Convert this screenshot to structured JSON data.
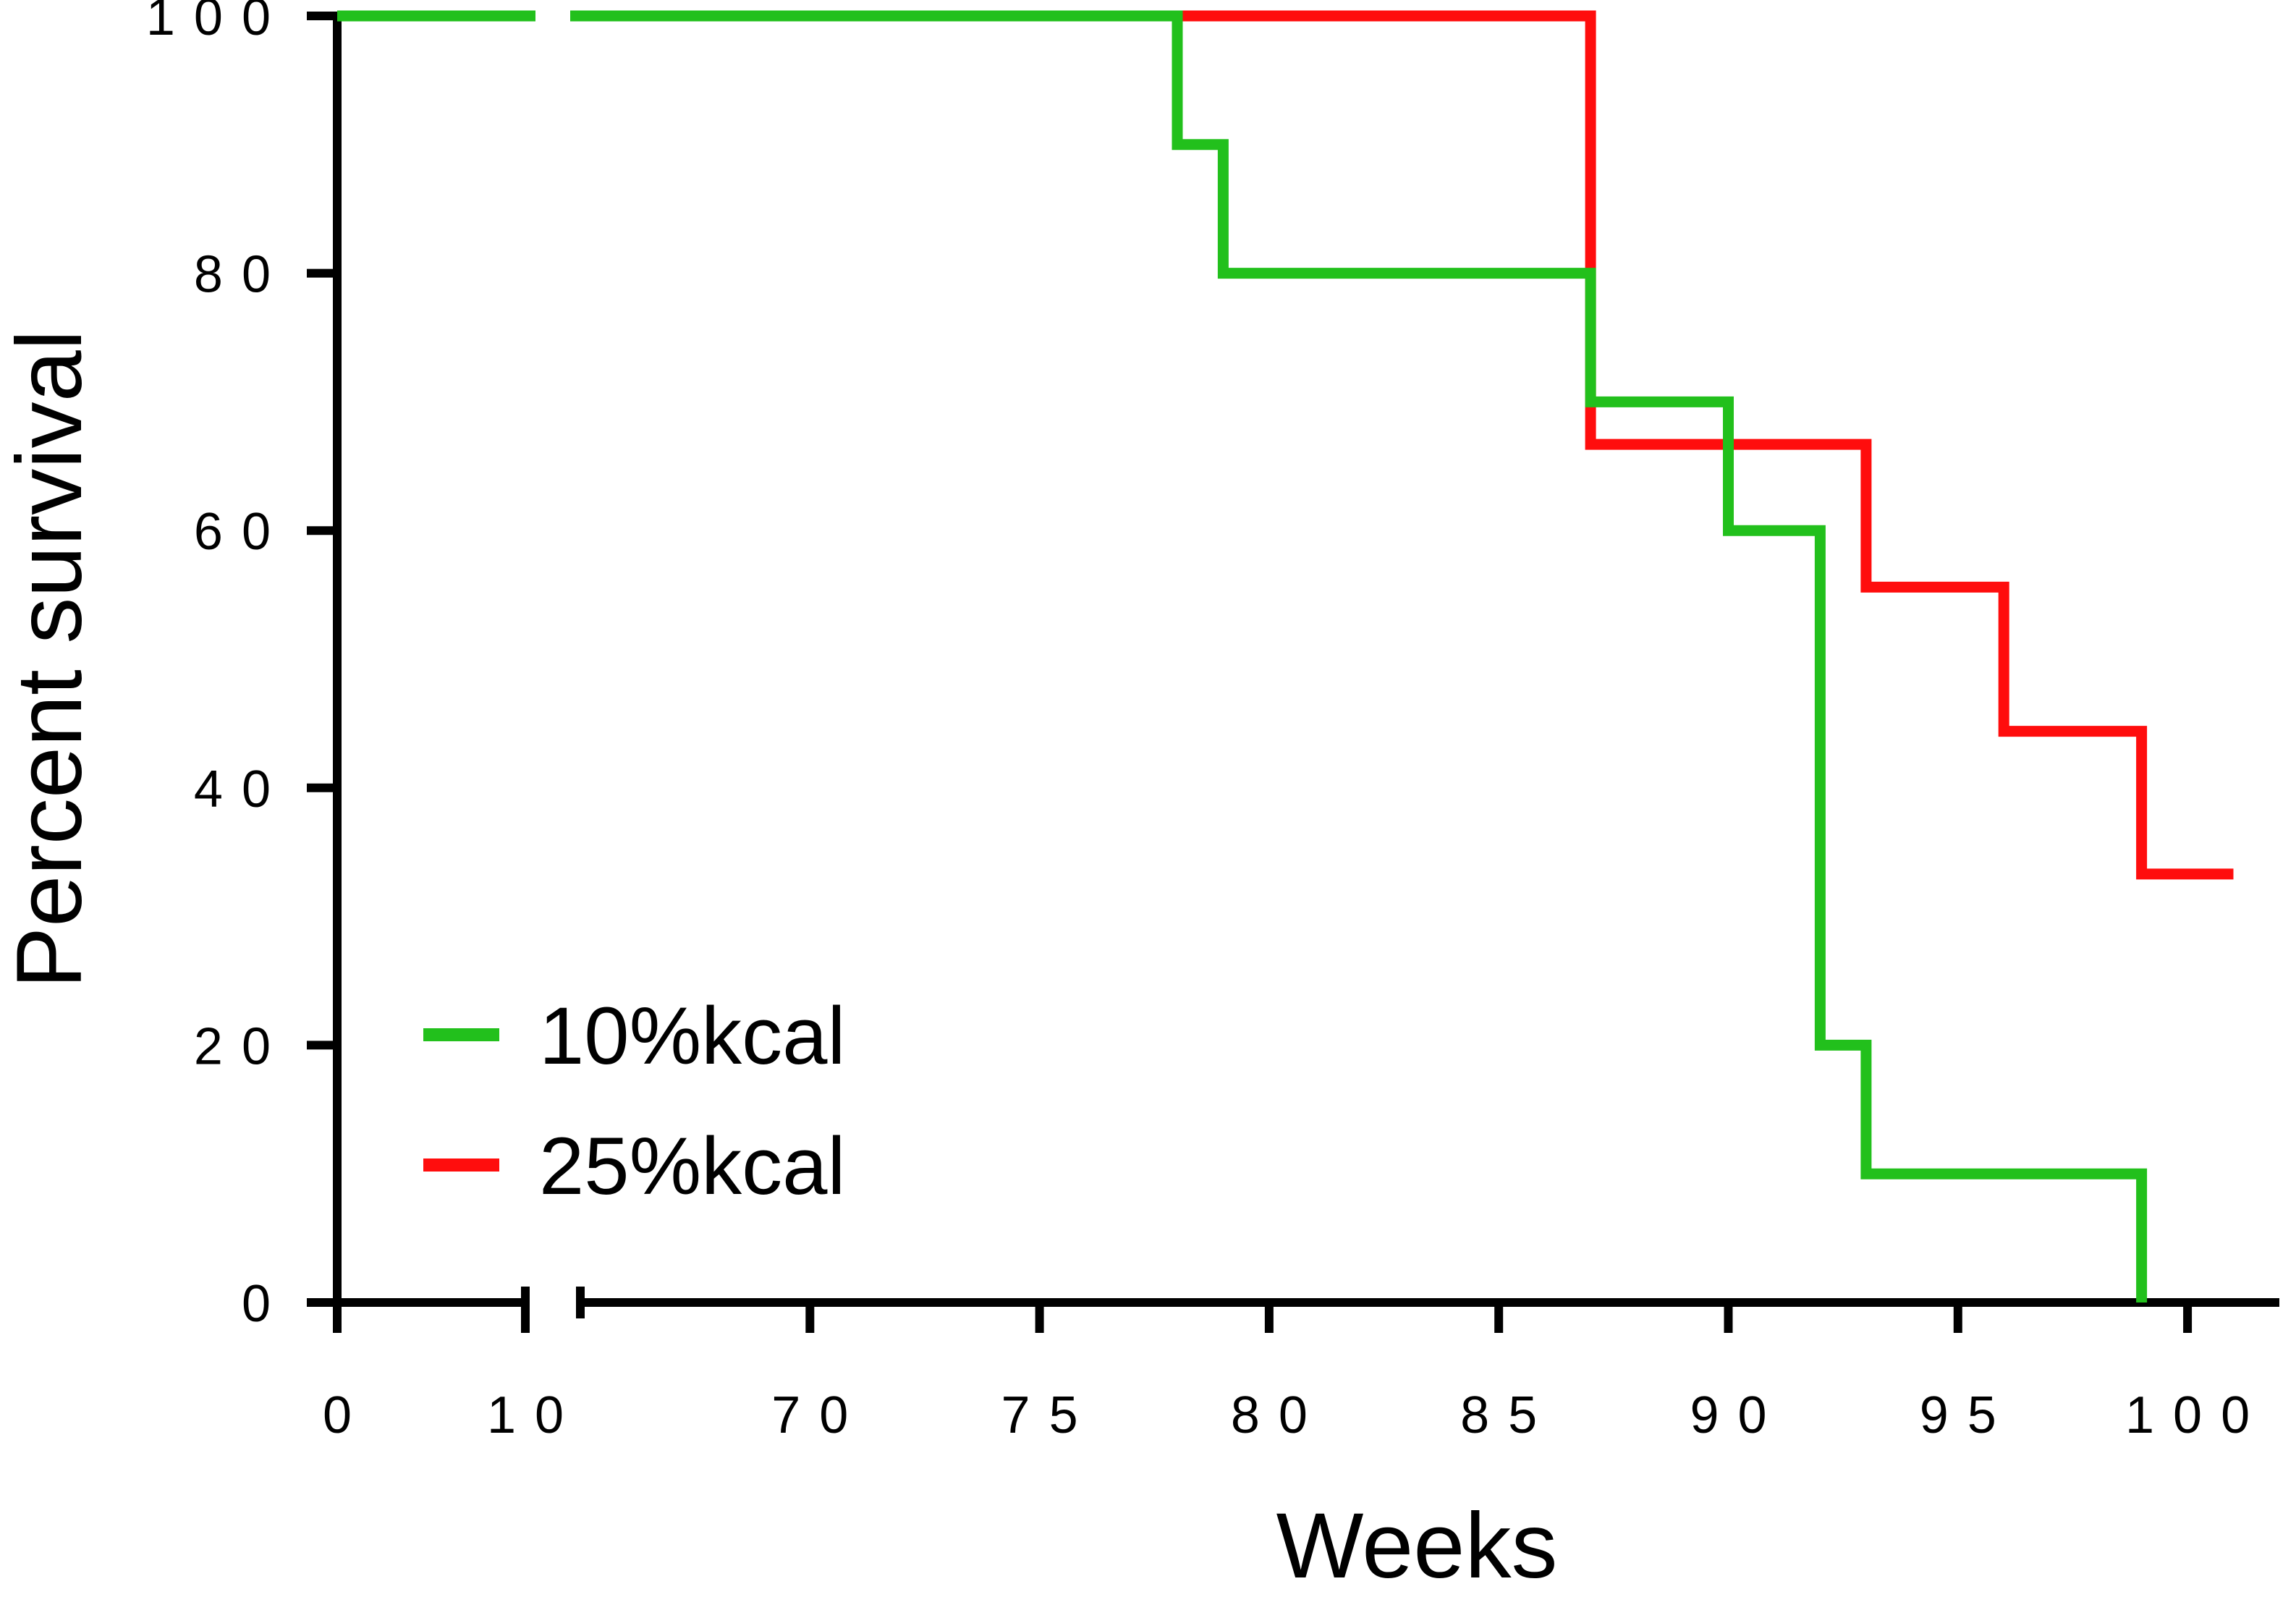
{
  "chart_data": {
    "type": "line",
    "subtype": "kaplan-meier-step",
    "title": "",
    "xlabel": "Weeks",
    "ylabel": "Percent survival",
    "ylim": [
      0,
      100
    ],
    "yticks": [
      0,
      20,
      40,
      60,
      80,
      100
    ],
    "x_segments": [
      {
        "range": [
          0,
          10
        ],
        "ticks": [
          0,
          10
        ]
      },
      {
        "range": [
          65,
          102
        ],
        "ticks": [
          70,
          75,
          80,
          85,
          90,
          95,
          100
        ]
      }
    ],
    "axis_break": true,
    "grid": false,
    "legend_position": "bottom-left",
    "series": [
      {
        "name": "10%kcal",
        "color": "#22c01c",
        "points": [
          [
            0,
            100
          ],
          [
            78,
            100
          ],
          [
            78,
            90
          ],
          [
            79,
            90
          ],
          [
            79,
            80
          ],
          [
            87,
            80
          ],
          [
            87,
            70
          ],
          [
            90,
            70
          ],
          [
            90,
            60
          ],
          [
            92,
            60
          ],
          [
            92,
            20
          ],
          [
            93,
            20
          ],
          [
            93,
            10
          ],
          [
            99,
            10
          ],
          [
            99,
            0
          ]
        ]
      },
      {
        "name": "25%kcal",
        "color": "#ff0d0d",
        "points": [
          [
            78,
            100
          ],
          [
            87,
            100
          ],
          [
            87,
            66.7
          ],
          [
            93,
            66.7
          ],
          [
            93,
            55.6
          ],
          [
            96,
            55.6
          ],
          [
            96,
            44.4
          ],
          [
            99,
            44.4
          ],
          [
            99,
            33.3
          ],
          [
            101,
            33.3
          ]
        ]
      }
    ]
  }
}
